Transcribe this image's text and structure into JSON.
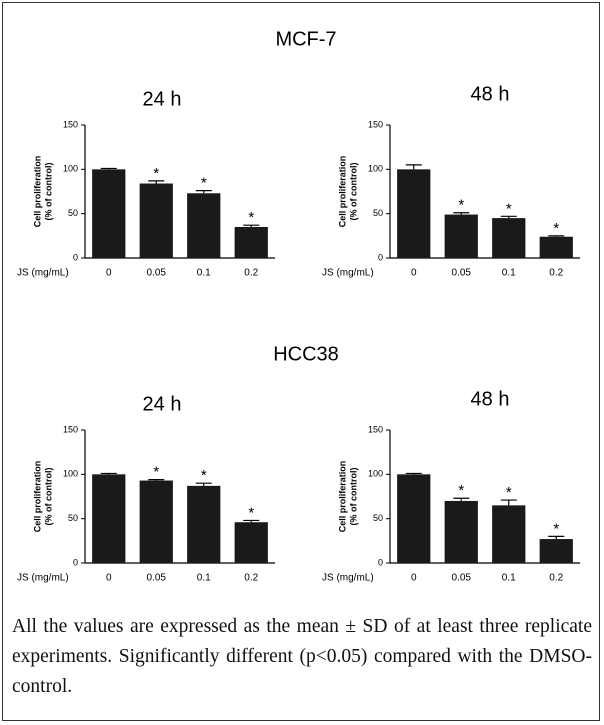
{
  "sections": [
    "MCF-7",
    "HCC38"
  ],
  "caption": "All the values are expressed as the mean ± SD of at least three replicate experiments. Significantly different (p<0.05) compared with the DMSO-control.",
  "chart_data": [
    {
      "type": "bar",
      "title": "24 h",
      "xlabel": "JS (mg/mL)",
      "ylabel": [
        "Cell proliferation",
        "(% of control)"
      ],
      "categories": [
        "0",
        "0.05",
        "0.1",
        "0.2"
      ],
      "values": [
        100,
        84,
        73,
        35
      ],
      "errors": [
        1,
        3,
        3,
        2
      ],
      "annotations": [
        null,
        "*",
        "*",
        "*"
      ],
      "color": "#1a1a1a",
      "ylim": [
        0,
        150
      ],
      "yticks": [
        0,
        50,
        100,
        150
      ]
    },
    {
      "type": "bar",
      "title": "48 h",
      "xlabel": "JS (mg/mL)",
      "ylabel": [
        "Cell proliferation",
        "(% of control)"
      ],
      "categories": [
        "0",
        "0.05",
        "0.1",
        "0.2"
      ],
      "values": [
        100,
        49,
        45,
        24
      ],
      "errors": [
        5,
        2,
        2,
        1
      ],
      "annotations": [
        null,
        "*",
        "*",
        "*"
      ],
      "color": "#1a1a1a",
      "ylim": [
        0,
        150
      ],
      "yticks": [
        0,
        50,
        100,
        150
      ]
    },
    {
      "type": "bar",
      "title": "24 h",
      "xlabel": "JS (mg/mL)",
      "ylabel": [
        "Cell proliferation",
        "(% of control)"
      ],
      "categories": [
        "0",
        "0.05",
        "0.1",
        "0.2"
      ],
      "values": [
        100,
        93,
        87,
        46
      ],
      "errors": [
        1,
        1,
        3,
        2
      ],
      "annotations": [
        null,
        "*",
        "*",
        "*"
      ],
      "color": "#1a1a1a",
      "ylim": [
        0,
        150
      ],
      "yticks": [
        0,
        50,
        100,
        150
      ]
    },
    {
      "type": "bar",
      "title": "48 h",
      "xlabel": "JS (mg/mL)",
      "ylabel": [
        "Cell proliferation",
        "(% of control)"
      ],
      "categories": [
        "0",
        "0.05",
        "0.1",
        "0.2"
      ],
      "values": [
        100,
        70,
        65,
        27
      ],
      "errors": [
        1,
        3,
        6,
        3
      ],
      "annotations": [
        null,
        "*",
        "*",
        "*"
      ],
      "color": "#1a1a1a",
      "ylim": [
        0,
        150
      ],
      "yticks": [
        0,
        50,
        100,
        150
      ]
    }
  ]
}
